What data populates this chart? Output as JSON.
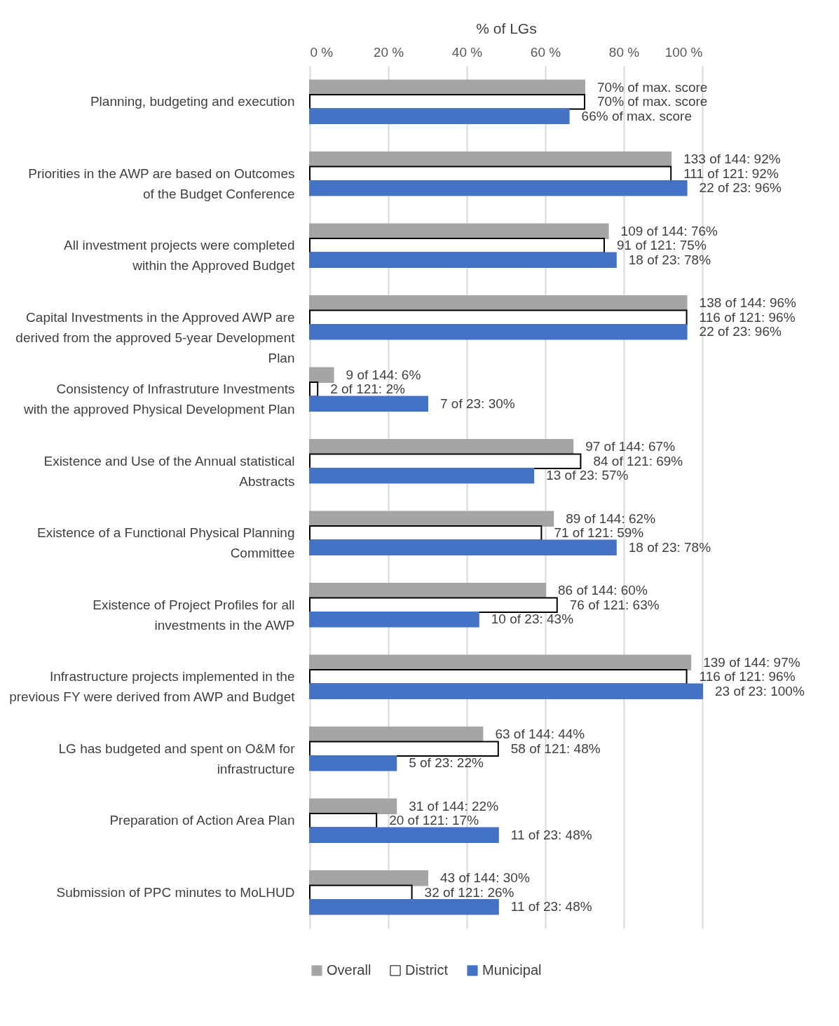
{
  "chart_data": {
    "type": "bar",
    "orientation": "horizontal",
    "xlabel": "% of LGs",
    "categories": [
      "Planning, budgeting and execution",
      "Priorities in the AWP are based on Outcomes of the Budget Conference",
      "All investment projects were completed within the Approved Budget",
      "Capital Investments in the Approved AWP are derived from the approved 5-year Development Plan",
      "Consistency of Infrastruture Investments with the approved Physical Development Plan",
      "Existence and Use of the Annual statistical Abstracts",
      "Existence of a Functional Physical Planning Committee",
      "Existence of Project Profiles for all investments in the AWP",
      "Infrastructure projects implemented in the previous FY were derived from AWP and Budget",
      "LG has budgeted and spent on O&M for infrastructure",
      "Preparation of Action Area Plan",
      "Submission of PPC minutes to MoLHUD"
    ],
    "series": [
      {
        "name": "Overall",
        "color": "#a5a5a5",
        "values": [
          70,
          92,
          76,
          96,
          6,
          67,
          62,
          60,
          97,
          44,
          22,
          30
        ],
        "value_labels": [
          "70% of max. score",
          "133 of 144: 92%",
          "109 of 144: 76%",
          "138 of 144: 96%",
          "9 of 144: 6%",
          "97 of 144: 67%",
          "89 of 144: 62%",
          "86 of 144: 60%",
          "139 of 144: 97%",
          "63 of 144: 44%",
          "31 of 144: 22%",
          "43 of 144: 30%"
        ]
      },
      {
        "name": "District",
        "color": "#ffffff",
        "values": [
          70,
          92,
          75,
          96,
          2,
          69,
          59,
          63,
          96,
          48,
          17,
          26
        ],
        "value_labels": [
          "70% of max. score",
          "111 of 121: 92%",
          "91 of 121: 75%",
          "116 of 121: 96%",
          "2 of 121: 2%",
          "84 of 121: 69%",
          "71 of 121: 59%",
          "76 of 121: 63%",
          "116 of 121: 96%",
          "58 of 121: 48%",
          "20 of 121: 17%",
          "32 of 121: 26%"
        ]
      },
      {
        "name": "Municipal",
        "color": "#4472c4",
        "values": [
          66,
          96,
          78,
          96,
          30,
          57,
          78,
          43,
          100,
          22,
          48,
          48
        ],
        "value_labels": [
          "66% of max. score",
          "22 of 23: 96%",
          "18 of 23: 78%",
          "22 of 23: 96%",
          "7 of 23: 30%",
          "13 of 23: 57%",
          "18 of 23: 78%",
          "10 of 23: 43%",
          "23 of 23: 100%",
          "5 of 23: 22%",
          "11 of 23: 48%",
          "11 of 23: 48%"
        ]
      }
    ],
    "xlim": [
      0,
      100
    ],
    "xticks": [
      {
        "value": 0,
        "label": "0 %"
      },
      {
        "value": 20,
        "label": "20 %"
      },
      {
        "value": 40,
        "label": "40 %"
      },
      {
        "value": 60,
        "label": "60 %"
      },
      {
        "value": 80,
        "label": "80 %"
      },
      {
        "value": 100,
        "label": "100 %"
      }
    ],
    "grid": "x",
    "legend": "bottom"
  }
}
